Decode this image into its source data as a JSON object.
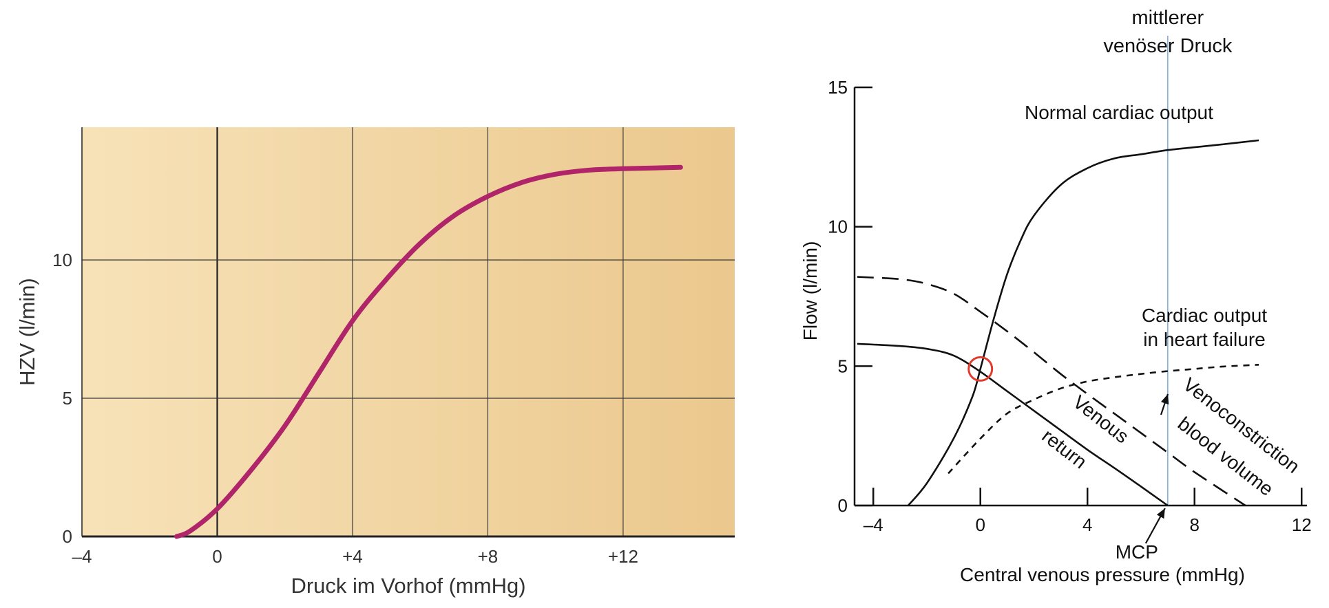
{
  "chart_data": [
    {
      "type": "line",
      "xlabel": "Druck im Vorhof (mmHg)",
      "ylabel": "HZV (l/min)",
      "xlim": [
        -4,
        15.3
      ],
      "ylim": [
        0,
        14.8
      ],
      "xticks": [
        -4,
        0,
        4,
        8,
        12
      ],
      "xtick_labels": [
        "–4",
        "0",
        "+4",
        "+8",
        "+12"
      ],
      "yticks": [
        0,
        5,
        10
      ],
      "ytick_labels": [
        "0",
        "5",
        "10"
      ],
      "grid": true,
      "colors": {
        "background_from": "#f7e2b8",
        "background_to": "#ebc88d",
        "curve": "#b0246a"
      },
      "series": [
        {
          "x": [
            -1.2,
            -0.8,
            0,
            1,
            2,
            3,
            4,
            5,
            6,
            7,
            8,
            9,
            10,
            11,
            12,
            13,
            13.7
          ],
          "values": [
            0.0,
            0.2,
            1.0,
            2.4,
            4.0,
            5.9,
            7.8,
            9.3,
            10.6,
            11.6,
            12.3,
            12.8,
            13.1,
            13.25,
            13.3,
            13.33,
            13.35
          ]
        }
      ]
    },
    {
      "type": "line",
      "xlabel": "Central venous pressure (mmHg)",
      "ylabel": "Flow (l/min)",
      "xlim": [
        -4.7,
        12.2
      ],
      "ylim": [
        0,
        15
      ],
      "xticks": [
        -4,
        0,
        4,
        8,
        12
      ],
      "xtick_labels": [
        "–4",
        "0",
        "4",
        "8",
        "12"
      ],
      "yticks": [
        0,
        5,
        10,
        15
      ],
      "ytick_labels": [
        "0",
        "5",
        "10",
        "15"
      ],
      "grid": false,
      "series": [
        {
          "label": "Normal cardiac output",
          "style": "solid",
          "x": [
            -2.7,
            -2.0,
            -1.0,
            -0.3,
            0,
            0.5,
            1.0,
            1.5,
            2,
            3,
            4,
            5,
            6,
            7,
            8,
            9,
            10.4
          ],
          "values": [
            0.0,
            0.8,
            2.4,
            3.9,
            4.9,
            6.7,
            8.3,
            9.5,
            10.4,
            11.5,
            12.1,
            12.45,
            12.6,
            12.75,
            12.85,
            12.95,
            13.1
          ]
        },
        {
          "label": "Cardiac output in heart failure",
          "style": "dotted",
          "x": [
            -1.2,
            0,
            1,
            2,
            3,
            4,
            5,
            6,
            7,
            8,
            9,
            10.4
          ],
          "values": [
            1.15,
            2.4,
            3.3,
            3.8,
            4.2,
            4.45,
            4.6,
            4.72,
            4.82,
            4.9,
            4.98,
            5.05
          ]
        },
        {
          "label": "Venous return",
          "style": "solid",
          "x": [
            -4.6,
            -3,
            -2,
            -1,
            0,
            1,
            2,
            3,
            4,
            5,
            6,
            7
          ],
          "values": [
            5.8,
            5.72,
            5.62,
            5.38,
            4.8,
            4.1,
            3.4,
            2.7,
            2.0,
            1.35,
            0.68,
            0.0
          ]
        },
        {
          "label": "Venoconstriction blood volume",
          "style": "dashed",
          "x": [
            -4.6,
            -3,
            -2,
            -1,
            0,
            1,
            2,
            3,
            4,
            5,
            6,
            7,
            8,
            9.9
          ],
          "values": [
            8.2,
            8.12,
            7.95,
            7.6,
            6.95,
            6.25,
            5.5,
            4.72,
            4.0,
            3.3,
            2.6,
            1.9,
            1.2,
            0.0
          ]
        }
      ],
      "annotations": {
        "mcp_label": "MCP",
        "mcp_x": 7,
        "top_label_line1": "mittlerer",
        "top_label_line2": "venöser Druck",
        "normal_co_label": "Normal cardiac output",
        "heart_failure_line1": "Cardiac output",
        "heart_failure_line2": "in heart failure",
        "venous_line1": "Venous",
        "venous_line2": "return",
        "veno_line1": "Venoconstriction",
        "veno_line2": "blood volume",
        "operating_point": {
          "x": 0,
          "y": 4.9
        }
      },
      "colors": {
        "axis": "#111111",
        "vertical_line": "#7aa7d9",
        "circle": "#e23b2e"
      }
    }
  ]
}
